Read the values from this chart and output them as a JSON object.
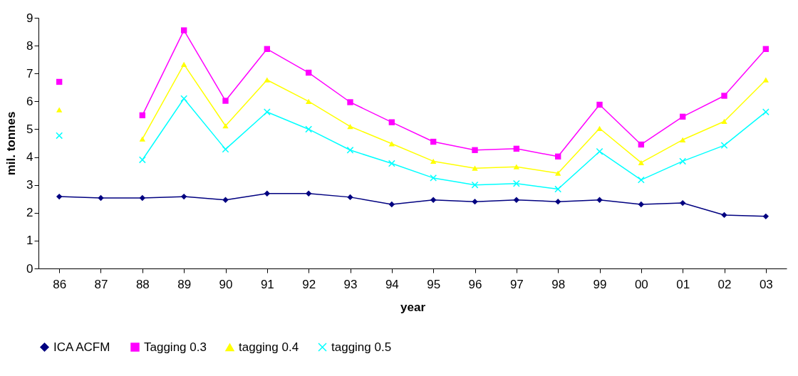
{
  "chart_data": {
    "type": "line",
    "xlabel": "year",
    "ylabel": "mil. tonnes",
    "categories": [
      "86",
      "87",
      "88",
      "89",
      "90",
      "91",
      "92",
      "93",
      "94",
      "95",
      "96",
      "97",
      "98",
      "99",
      "00",
      "01",
      "02",
      "03"
    ],
    "ylim": [
      0,
      9
    ],
    "yticks": [
      0,
      1,
      2,
      3,
      4,
      5,
      6,
      7,
      8,
      9
    ],
    "grid": false,
    "legend": "bottom",
    "series": [
      {
        "name": "ICA ACFM",
        "color": "#000080",
        "marker": "diamond",
        "values": [
          2.58,
          2.53,
          2.53,
          2.58,
          2.46,
          2.69,
          2.69,
          2.56,
          2.3,
          2.46,
          2.4,
          2.46,
          2.4,
          2.46,
          2.3,
          2.35,
          1.92,
          1.87
        ]
      },
      {
        "name": "Tagging 0.3",
        "color": "#ff00ff",
        "marker": "square",
        "values": [
          6.7,
          null,
          5.5,
          8.55,
          6.02,
          7.88,
          7.03,
          5.97,
          5.25,
          4.55,
          4.25,
          4.3,
          4.02,
          5.88,
          4.45,
          5.45,
          6.2,
          7.88
        ]
      },
      {
        "name": "tagging 0.4",
        "color": "#ffff00",
        "marker": "triangle",
        "values": [
          5.7,
          null,
          4.65,
          7.33,
          5.12,
          6.77,
          6.0,
          5.1,
          4.48,
          3.85,
          3.6,
          3.65,
          3.42,
          5.03,
          3.8,
          4.62,
          5.28,
          6.77
        ]
      },
      {
        "name": "tagging 0.5",
        "color": "#00ffff",
        "marker": "cross",
        "values": [
          4.77,
          null,
          3.9,
          6.1,
          4.28,
          5.62,
          5.0,
          4.25,
          3.77,
          3.25,
          3.0,
          3.05,
          2.85,
          4.2,
          3.18,
          3.85,
          4.42,
          5.62
        ]
      }
    ]
  }
}
